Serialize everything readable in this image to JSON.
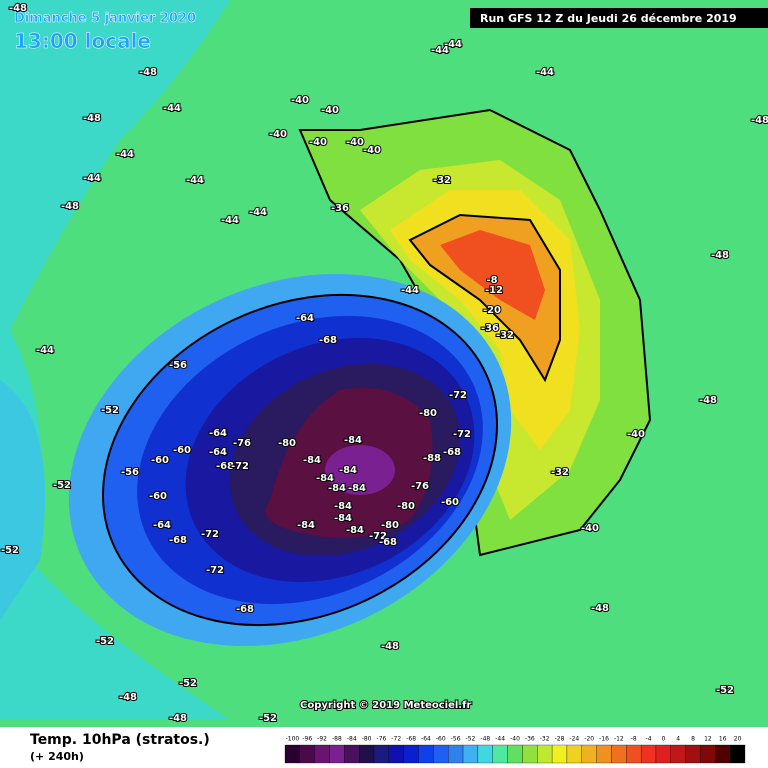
{
  "header": {
    "date": "Dimanche 5 janvier 2020",
    "time": "13:00 locale",
    "run": "Run GFS 12 Z du Jeudi 26 décembre 2019"
  },
  "footer": {
    "title": "Temp. 10hPa (stratos.)",
    "lead": "(+ 240h)",
    "copyright": "Copyright © 2019 Meteociel.fr"
  },
  "legend": {
    "ticks": [
      "-100",
      "-96",
      "-92",
      "-88",
      "-84",
      "-80",
      "-76",
      "-72",
      "-68",
      "-64",
      "-60",
      "-56",
      "-52",
      "-48",
      "-44",
      "-40",
      "-36",
      "-32",
      "-28",
      "-24",
      "-20",
      "-16",
      "-12",
      "-8",
      "-4",
      "0",
      "4",
      "8",
      "12",
      "16",
      "20"
    ],
    "colors": [
      "#2a0030",
      "#4a0a4a",
      "#6a1470",
      "#7a2090",
      "#4a1060",
      "#20104a",
      "#1a1a80",
      "#1010b0",
      "#0a20d0",
      "#1040e8",
      "#2060f0",
      "#3080f0",
      "#40b0f0",
      "#40d8e0",
      "#50e8a0",
      "#60e060",
      "#90e040",
      "#c0e830",
      "#f0f020",
      "#f0d020",
      "#f0b020",
      "#f09020",
      "#f07020",
      "#f05020",
      "#f03020",
      "#e02020",
      "#c01818",
      "#a01010",
      "#800808",
      "#500000",
      "#000000"
    ]
  },
  "contour_labels": [
    "-48",
    "-44",
    "-44",
    "-44",
    "-48",
    "-44",
    "-48",
    "-40",
    "-40",
    "-40",
    "-40",
    "-40",
    "-40",
    "-44",
    "-44",
    "-44",
    "-48",
    "-44",
    "-44",
    "-36",
    "-32",
    "-48",
    "-48",
    "-44",
    "-8",
    "-12",
    "-20",
    "-36",
    "-32",
    "-64",
    "-68",
    "-56",
    "-44",
    "-52",
    "-72",
    "-80",
    "-72",
    "-84",
    "-76",
    "-80",
    "-64",
    "-60",
    "-64",
    "-68",
    "-72",
    "-84",
    "-84",
    "-88",
    "-68",
    "-60",
    "-56",
    "-52",
    "-60",
    "-84",
    "-84",
    "-84",
    "-84",
    "-80",
    "-76",
    "-60",
    "-64",
    "-84",
    "-84",
    "-84",
    "-80",
    "-72",
    "-68",
    "-68",
    "-72",
    "-32",
    "-40",
    "-48",
    "-40",
    "-72",
    "-68",
    "-52",
    "-48",
    "-52",
    "-52",
    "-48",
    "-48",
    "-52",
    "-52",
    "-48"
  ]
}
